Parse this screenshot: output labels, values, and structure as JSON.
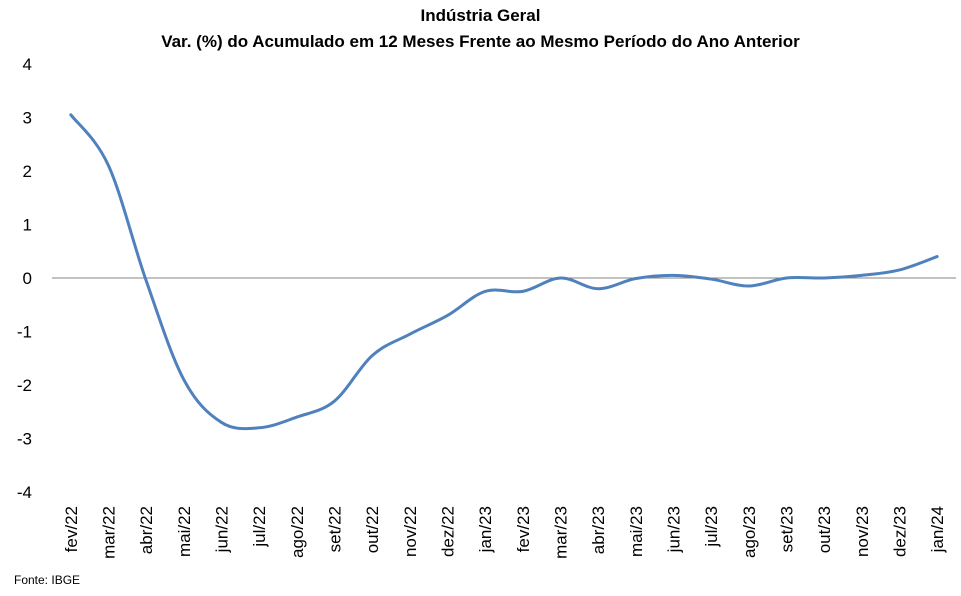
{
  "chart_data": {
    "type": "line",
    "title": "Indústria Geral",
    "subtitle": "Var. (%) do Acumulado em 12 Meses Frente ao Mesmo Período do Ano Anterior",
    "xlabel": "",
    "ylabel": "",
    "ylim": [
      -4,
      4
    ],
    "yticks": [
      "4",
      "3",
      "2",
      "1",
      "0",
      "-1",
      "-2",
      "-3",
      "-4"
    ],
    "categories": [
      "fev/22",
      "mar/22",
      "abr/22",
      "mai/22",
      "jun/22",
      "jul/22",
      "ago/22",
      "set/22",
      "out/22",
      "nov/22",
      "dez/22",
      "jan/23",
      "fev/23",
      "mar/23",
      "abr/23",
      "mai/23",
      "jun/23",
      "jul/23",
      "ago/23",
      "set/23",
      "out/23",
      "nov/23",
      "dez/23",
      "jan/24"
    ],
    "series": [
      {
        "values": [
          3.05,
          2.1,
          -0.05,
          -1.9,
          -2.7,
          -2.8,
          -2.6,
          -2.3,
          -1.45,
          -1.05,
          -0.7,
          -0.25,
          -0.25,
          0.0,
          -0.2,
          -0.01,
          0.05,
          -0.02,
          -0.15,
          0.0,
          0.0,
          0.05,
          0.15,
          0.4
        ]
      }
    ],
    "grid": false,
    "legend": "none",
    "zero_line": true,
    "line_color": "#4f81bd",
    "axis_color": "#868686"
  },
  "source": "Fonte: IBGE"
}
